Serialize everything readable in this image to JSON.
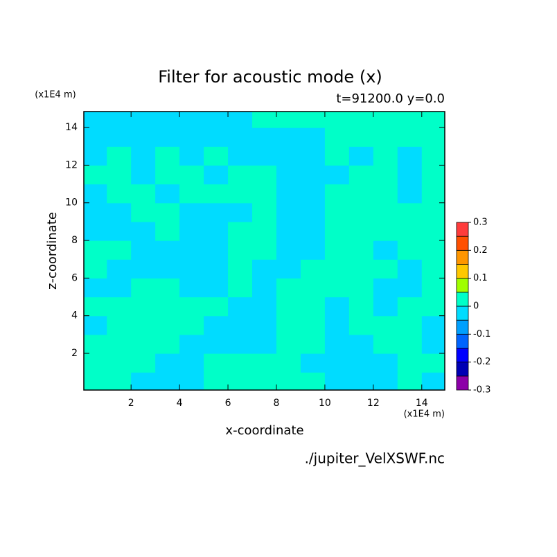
{
  "chart_data": {
    "type": "contour",
    "title": "Filter for acoustic mode (x)",
    "subtitle": "t=91200.0 y=0.0",
    "x_label": "x-coordinate",
    "y_label": "z-coordinate",
    "x_unit": "(x1E4 m)",
    "y_unit": "(x1E4 m)",
    "source": "./jupiter_VelXSWF.nc",
    "xlim": [
      0.05,
      14.95
    ],
    "ylim": [
      0.05,
      14.85
    ],
    "xticks": [
      2,
      4,
      6,
      8,
      10,
      12,
      14
    ],
    "yticks": [
      2,
      4,
      6,
      8,
      10,
      12,
      14
    ],
    "x": [
      0.5,
      1.5,
      2.5,
      3.5,
      4.5,
      5.5,
      6.5,
      7.5,
      8.5,
      9.5,
      10.5,
      11.5,
      12.5,
      13.5,
      14.5
    ],
    "y": [
      0.5,
      1.5,
      2.5,
      3.5,
      4.5,
      5.5,
      6.5,
      7.5,
      8.5,
      9.5,
      10.5,
      11.5,
      12.5,
      13.5,
      14.5
    ],
    "z": [
      [
        0.02,
        0.02,
        -0.02,
        -0.02,
        -0.02,
        0.02,
        0.02,
        0.02,
        0.02,
        0.02,
        -0.02,
        -0.02,
        -0.02,
        0.02,
        -0.02
      ],
      [
        0.02,
        0.02,
        0.02,
        -0.02,
        -0.02,
        0.02,
        0.02,
        0.02,
        0.02,
        -0.02,
        -0.02,
        -0.02,
        -0.02,
        0.02,
        0.02
      ],
      [
        0.02,
        0.02,
        0.02,
        0.02,
        -0.02,
        -0.02,
        -0.02,
        -0.02,
        0.02,
        0.02,
        -0.02,
        -0.02,
        0.02,
        0.02,
        -0.02
      ],
      [
        -0.02,
        0.02,
        0.02,
        0.02,
        0.02,
        -0.02,
        -0.02,
        -0.02,
        0.02,
        0.02,
        -0.02,
        0.02,
        0.02,
        0.02,
        -0.02
      ],
      [
        0.02,
        0.02,
        0.02,
        0.02,
        0.02,
        0.02,
        -0.02,
        -0.02,
        0.02,
        0.02,
        -0.02,
        0.02,
        -0.02,
        0.02,
        0.02
      ],
      [
        -0.02,
        -0.02,
        0.02,
        0.02,
        -0.02,
        -0.02,
        0.02,
        -0.02,
        0.02,
        0.02,
        0.02,
        0.02,
        -0.02,
        -0.02,
        0.02
      ],
      [
        0.02,
        -0.02,
        -0.02,
        -0.02,
        -0.02,
        -0.02,
        0.02,
        -0.02,
        -0.02,
        0.02,
        0.02,
        0.02,
        0.02,
        -0.02,
        0.02
      ],
      [
        0.02,
        0.02,
        -0.02,
        -0.02,
        -0.02,
        -0.02,
        0.02,
        0.02,
        -0.02,
        -0.02,
        0.02,
        0.02,
        -0.02,
        0.02,
        0.02
      ],
      [
        -0.02,
        -0.02,
        -0.02,
        0.02,
        -0.02,
        -0.02,
        0.02,
        0.02,
        -0.02,
        -0.02,
        0.02,
        0.02,
        0.02,
        0.02,
        0.02
      ],
      [
        -0.02,
        -0.02,
        0.02,
        0.02,
        -0.02,
        -0.02,
        -0.02,
        0.02,
        -0.02,
        -0.02,
        0.02,
        0.02,
        0.02,
        0.02,
        0.02
      ],
      [
        -0.02,
        0.02,
        0.02,
        -0.02,
        0.02,
        0.02,
        0.02,
        0.02,
        -0.02,
        -0.02,
        0.02,
        0.02,
        0.02,
        -0.02,
        0.02
      ],
      [
        0.02,
        0.02,
        -0.02,
        0.02,
        0.02,
        -0.02,
        0.02,
        0.02,
        -0.02,
        -0.02,
        -0.02,
        0.02,
        0.02,
        -0.02,
        0.02
      ],
      [
        -0.02,
        0.02,
        -0.02,
        0.02,
        -0.02,
        0.02,
        -0.02,
        -0.02,
        -0.02,
        -0.02,
        0.02,
        -0.02,
        0.02,
        -0.02,
        0.02
      ],
      [
        -0.02,
        -0.02,
        -0.02,
        -0.02,
        -0.02,
        -0.02,
        -0.02,
        -0.02,
        -0.02,
        -0.02,
        0.02,
        0.02,
        0.02,
        0.02,
        0.02
      ],
      [
        -0.02,
        -0.02,
        -0.02,
        -0.02,
        -0.02,
        -0.02,
        -0.02,
        0.02,
        0.02,
        0.02,
        0.02,
        0.02,
        0.02,
        0.02,
        0.02
      ]
    ],
    "levels": [
      -0.3,
      -0.25,
      -0.2,
      -0.15,
      -0.1,
      -0.05,
      0,
      0.05,
      0.1,
      0.15,
      0.2,
      0.25,
      0.3
    ],
    "colors": [
      "#8c00a8",
      "#0000b4",
      "#0000ff",
      "#0064ff",
      "#00a0ff",
      "#00dcff",
      "#00ffc8",
      "#a0ff00",
      "#ffc800",
      "#ff9600",
      "#ff5000",
      "#ff3c3c",
      "#ffb4b4"
    ],
    "colorbar_ticks": [
      -0.3,
      -0.2,
      -0.1,
      0,
      0.1,
      0.2,
      0.3
    ]
  }
}
